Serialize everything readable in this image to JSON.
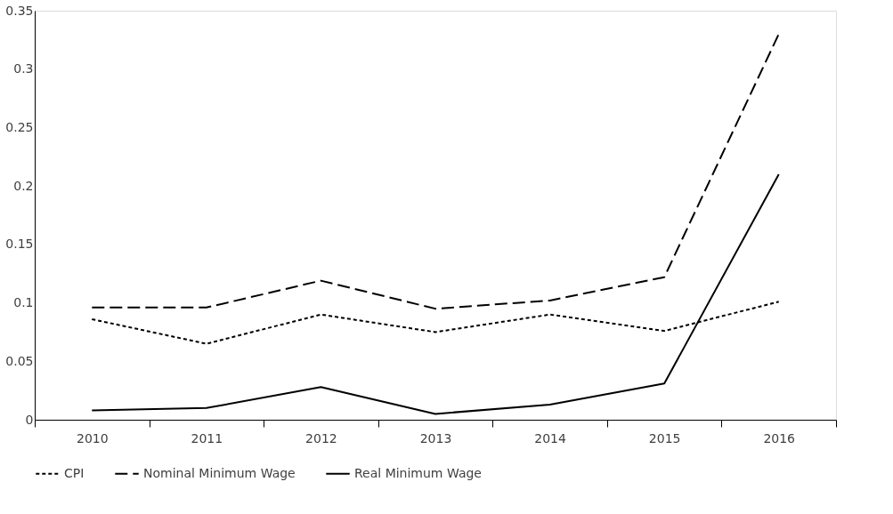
{
  "chart_data": {
    "type": "line",
    "categories": [
      "2010",
      "2011",
      "2012",
      "2013",
      "2014",
      "2015",
      "2016"
    ],
    "series": [
      {
        "name": "CPI",
        "color": "#000000",
        "line_style": "dotted",
        "values": [
          0.086,
          0.065,
          0.09,
          0.075,
          0.09,
          0.076,
          0.101
        ]
      },
      {
        "name": "Nominal Minimum Wage",
        "color": "#000000",
        "line_style": "dashed",
        "values": [
          0.096,
          0.096,
          0.119,
          0.095,
          0.102,
          0.122,
          0.33
        ]
      },
      {
        "name": "Real Minimum Wage",
        "color": "#000000",
        "line_style": "solid",
        "values": [
          0.008,
          0.01,
          0.028,
          0.005,
          0.013,
          0.031,
          0.21
        ]
      }
    ],
    "ylim": [
      0,
      0.35
    ],
    "yticks": [
      0,
      0.05,
      0.1,
      0.15,
      0.2,
      0.25,
      0.3,
      0.35
    ],
    "grid": false,
    "legend": "bottom",
    "marker": "none"
  }
}
